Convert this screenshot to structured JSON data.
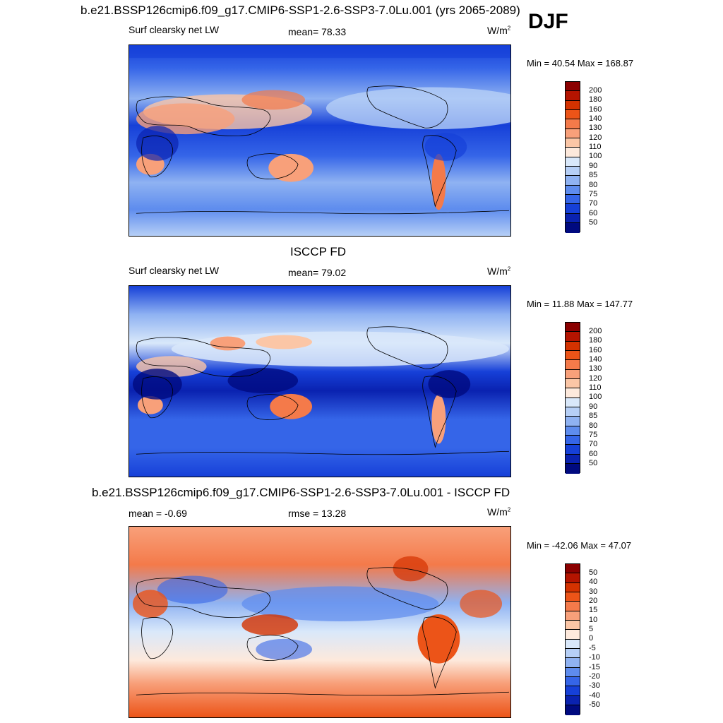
{
  "season": "DJF",
  "panels": [
    {
      "title": "b.e21.BSSP126cmip6.f09_g17.CMIP6-SSP1-2.6-SSP3-7.0Lu.001 (yrs 2065-2089)",
      "left_label": "Surf clearsky net LW",
      "center_label": "mean=  78.33",
      "units": "W/m",
      "units_exp": "2",
      "minmax": "Min =  40.54 Max = 168.87",
      "levels": [
        "200",
        "180",
        "160",
        "140",
        "130",
        "120",
        "110",
        "100",
        "90",
        "85",
        "80",
        "75",
        "70",
        "60",
        "50"
      ],
      "colors": [
        "#8b0000",
        "#b41400",
        "#d43200",
        "#ec5418",
        "#f47a4a",
        "#f8a07a",
        "#fbc6a6",
        "#fde9dc",
        "#d9e8fa",
        "#b6cff6",
        "#8fb2f2",
        "#5e8cee",
        "#3565e8",
        "#1640d8",
        "#0a22b0",
        "#000a80"
      ]
    },
    {
      "title": "ISCCP FD",
      "left_label": "Surf clearsky net LW",
      "center_label": "mean=  79.02",
      "units": "W/m",
      "units_exp": "2",
      "minmax": "Min =  11.88 Max = 147.77",
      "levels": [
        "200",
        "180",
        "160",
        "140",
        "130",
        "120",
        "110",
        "100",
        "90",
        "85",
        "80",
        "75",
        "70",
        "60",
        "50"
      ],
      "colors": [
        "#8b0000",
        "#b41400",
        "#d43200",
        "#ec5418",
        "#f47a4a",
        "#f8a07a",
        "#fbc6a6",
        "#fde9dc",
        "#d9e8fa",
        "#b6cff6",
        "#8fb2f2",
        "#5e8cee",
        "#3565e8",
        "#1640d8",
        "#0a22b0",
        "#000a80"
      ]
    },
    {
      "title": "b.e21.BSSP126cmip6.f09_g17.CMIP6-SSP1-2.6-SSP3-7.0Lu.001 - ISCCP FD",
      "left_label": "mean =  -0.69",
      "center_label": "rmse =  13.28",
      "units": "W/m",
      "units_exp": "2",
      "minmax": "Min = -42.06 Max =  47.07",
      "levels": [
        "50",
        "40",
        "30",
        "20",
        "15",
        "10",
        "5",
        "0",
        "-5",
        "-10",
        "-15",
        "-20",
        "-30",
        "-40",
        "-50"
      ],
      "colors": [
        "#8b0000",
        "#b41400",
        "#d43200",
        "#ec5418",
        "#f47a4a",
        "#f8a07a",
        "#fbc6a6",
        "#fde9dc",
        "#d9e8fa",
        "#b6cff6",
        "#8fb2f2",
        "#5e8cee",
        "#3565e8",
        "#1640d8",
        "#0a22b0",
        "#000a80"
      ]
    }
  ]
}
